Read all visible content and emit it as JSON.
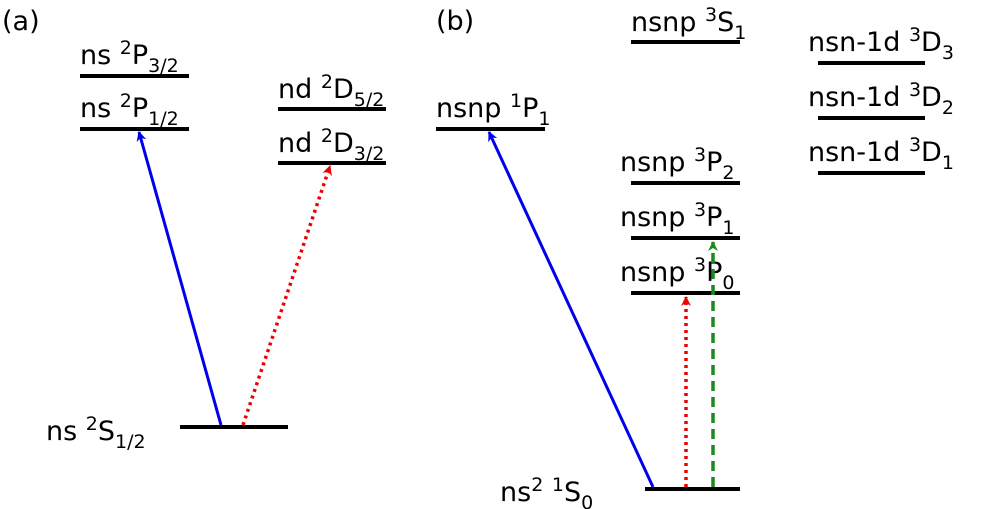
{
  "panels": {
    "a": "(a)",
    "b": "(b)"
  },
  "colors": {
    "level": "#000000",
    "blue": "#0000ee",
    "red": "#ee0000",
    "green": "#1a8a1a"
  },
  "panel_a": {
    "levels": {
      "p32": {
        "base": "ns ",
        "sup": "2",
        "main": "P",
        "sub": "3/2"
      },
      "p12": {
        "base": "ns ",
        "sup": "2",
        "main": "P",
        "sub": "1/2"
      },
      "d52": {
        "base": "nd ",
        "sup": "2",
        "main": "D",
        "sub": "5/2"
      },
      "d32": {
        "base": "nd ",
        "sup": "2",
        "main": "D",
        "sub": "3/2"
      },
      "s12": {
        "base": "ns ",
        "sup": "2",
        "main": "S",
        "sub": "1/2"
      }
    }
  },
  "panel_b": {
    "levels": {
      "s31": {
        "base": "nsnp ",
        "sup": "3",
        "main": "S",
        "sub": "1"
      },
      "p11": {
        "base": "nsnp ",
        "sup": "1",
        "main": "P",
        "sub": "1"
      },
      "d33": {
        "base": "nsn-1d ",
        "sup": "3",
        "main": "D",
        "sub": "3"
      },
      "d32": {
        "base": "nsn-1d ",
        "sup": "3",
        "main": "D",
        "sub": "2"
      },
      "d31": {
        "base": "nsn-1d ",
        "sup": "3",
        "main": "D",
        "sub": "1"
      },
      "p32": {
        "base": "nsnp ",
        "sup": "3",
        "main": "P",
        "sub": "2"
      },
      "p31": {
        "base": "nsnp ",
        "sup": "3",
        "main": "P",
        "sub": "1"
      },
      "p30": {
        "base": "nsnp ",
        "sup": "3",
        "main": "P",
        "sub": "0"
      },
      "s10": {
        "base": "ns",
        "sup2": "2",
        "mid": " ",
        "sup": "1",
        "main": "S",
        "sub": "0"
      }
    }
  }
}
